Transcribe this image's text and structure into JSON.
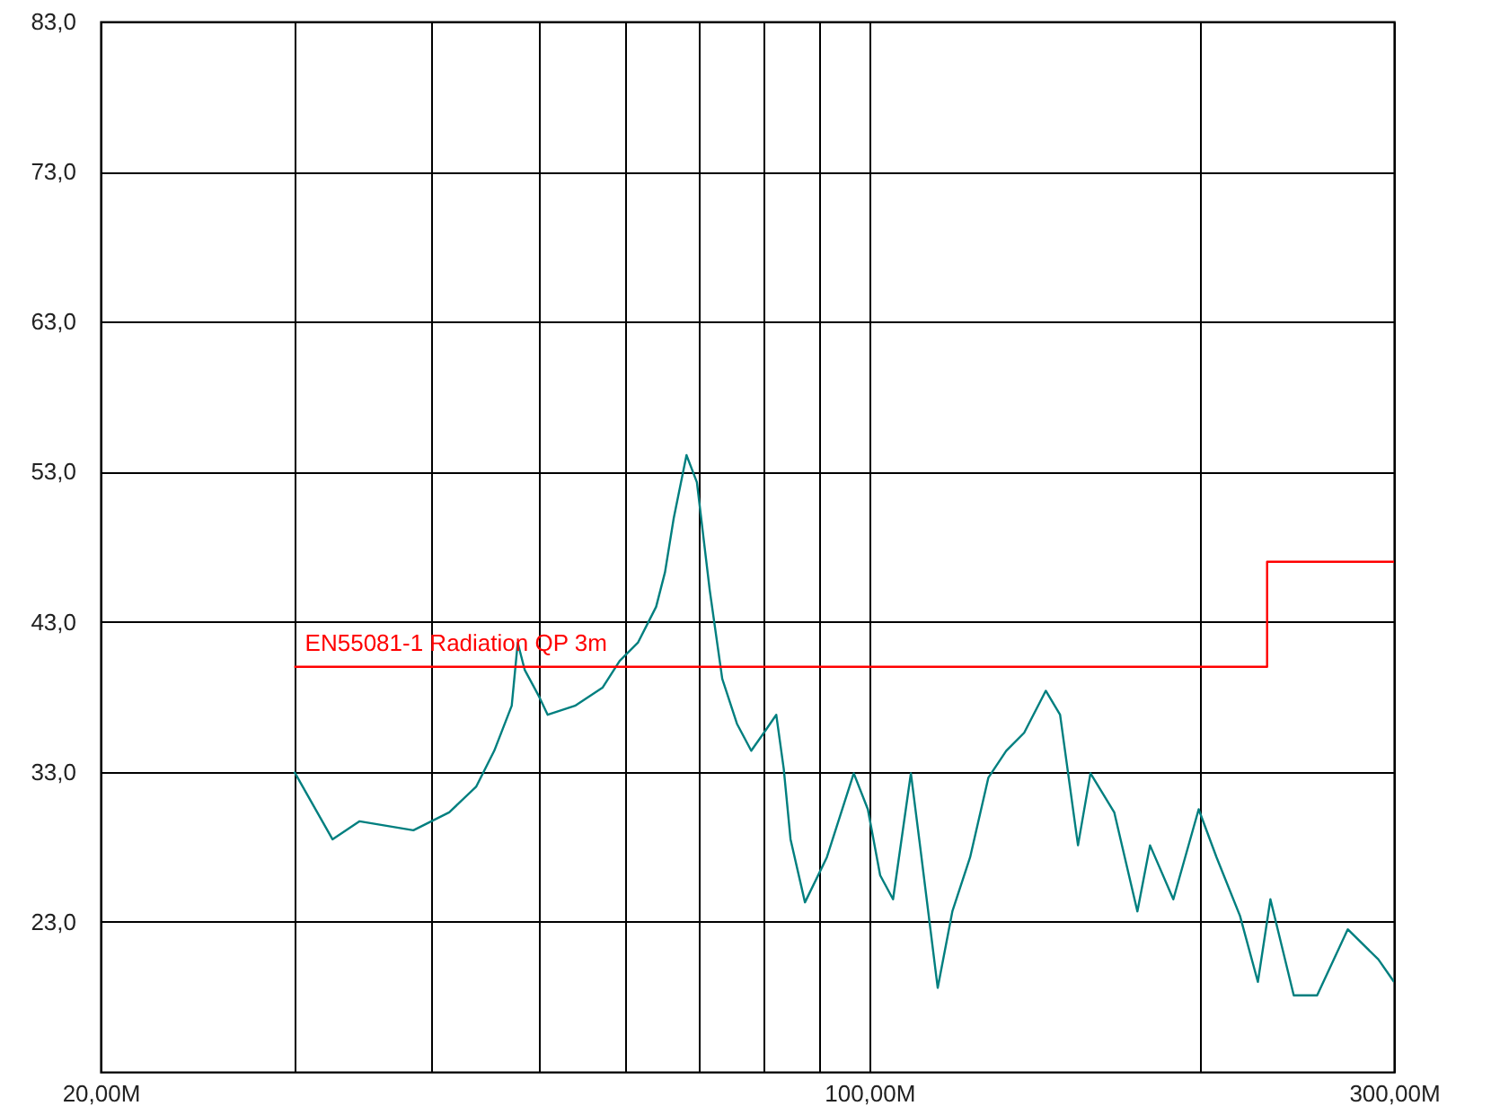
{
  "chart_data": {
    "type": "line",
    "xlim": [
      20,
      300
    ],
    "ylim": [
      13,
      83
    ],
    "log": "x",
    "grid": true,
    "marker": "none",
    "xticks": [
      {
        "value": 20,
        "label": "20,00M"
      },
      {
        "value": 30,
        "label": null
      },
      {
        "value": 40,
        "label": null
      },
      {
        "value": 50,
        "label": null
      },
      {
        "value": 60,
        "label": null
      },
      {
        "value": 70,
        "label": null
      },
      {
        "value": 80,
        "label": null
      },
      {
        "value": 90,
        "label": null
      },
      {
        "value": 100,
        "label": "100,00M"
      },
      {
        "value": 200,
        "label": null
      },
      {
        "value": 300,
        "label": "300,00M"
      }
    ],
    "yticks": [
      {
        "value": 23,
        "label": "23,0"
      },
      {
        "value": 33,
        "label": "33,0"
      },
      {
        "value": 43,
        "label": "43,0"
      },
      {
        "value": 53,
        "label": "53,0"
      },
      {
        "value": 63,
        "label": "63,0"
      },
      {
        "value": 73,
        "label": "73,0"
      },
      {
        "value": 83,
        "label": "83,0"
      }
    ],
    "series": [
      {
        "color": "#007f7f",
        "x": [
          30.0,
          32.5,
          34.4,
          38.5,
          41.5,
          43.9,
          45.6,
          47.3,
          47.9,
          48.6,
          50.1,
          51.0,
          54.0,
          57.2,
          59.3,
          61.6,
          64.0,
          65.2,
          66.4,
          68.2,
          69.7,
          71.6,
          73.5,
          75.8,
          78.1,
          80.2,
          82.3,
          83.6,
          84.8,
          87.4,
          91.5,
          96.8,
          99.7,
          102.3,
          105.1,
          109.1,
          111.2,
          115.4,
          119.0,
          123.5,
          128.3,
          133.2,
          138.3,
          144.7,
          149.1,
          154.8,
          158.9,
          167.0,
          175.3,
          180.0,
          189.0,
          199.3,
          206.9,
          217.3,
          225.6,
          231.6,
          243.2,
          255.4,
          272.3,
          290.3,
          300
        ],
        "values": [
          33.0,
          28.5,
          29.7,
          29.1,
          30.3,
          32.0,
          34.4,
          37.4,
          41.6,
          39.8,
          38.0,
          36.8,
          37.4,
          38.6,
          40.4,
          41.6,
          44.0,
          46.3,
          49.9,
          54.1,
          52.3,
          45.1,
          39.2,
          36.2,
          34.4,
          35.6,
          36.8,
          33.2,
          28.5,
          24.3,
          27.3,
          32.9,
          30.5,
          26.1,
          24.5,
          32.9,
          28.1,
          18.6,
          23.7,
          27.3,
          32.6,
          34.4,
          35.6,
          38.4,
          36.8,
          28.1,
          32.9,
          30.3,
          23.7,
          28.1,
          24.5,
          30.5,
          27.3,
          23.4,
          19.0,
          24.5,
          18.1,
          18.1,
          22.5,
          20.5,
          19.0
        ]
      },
      {
        "name": "EN55081-1 Radiation QP 3m",
        "color": "#ff0000",
        "type": "step",
        "x": [
          30,
          230,
          230,
          300
        ],
        "values": [
          40,
          40,
          47,
          47
        ]
      }
    ]
  }
}
